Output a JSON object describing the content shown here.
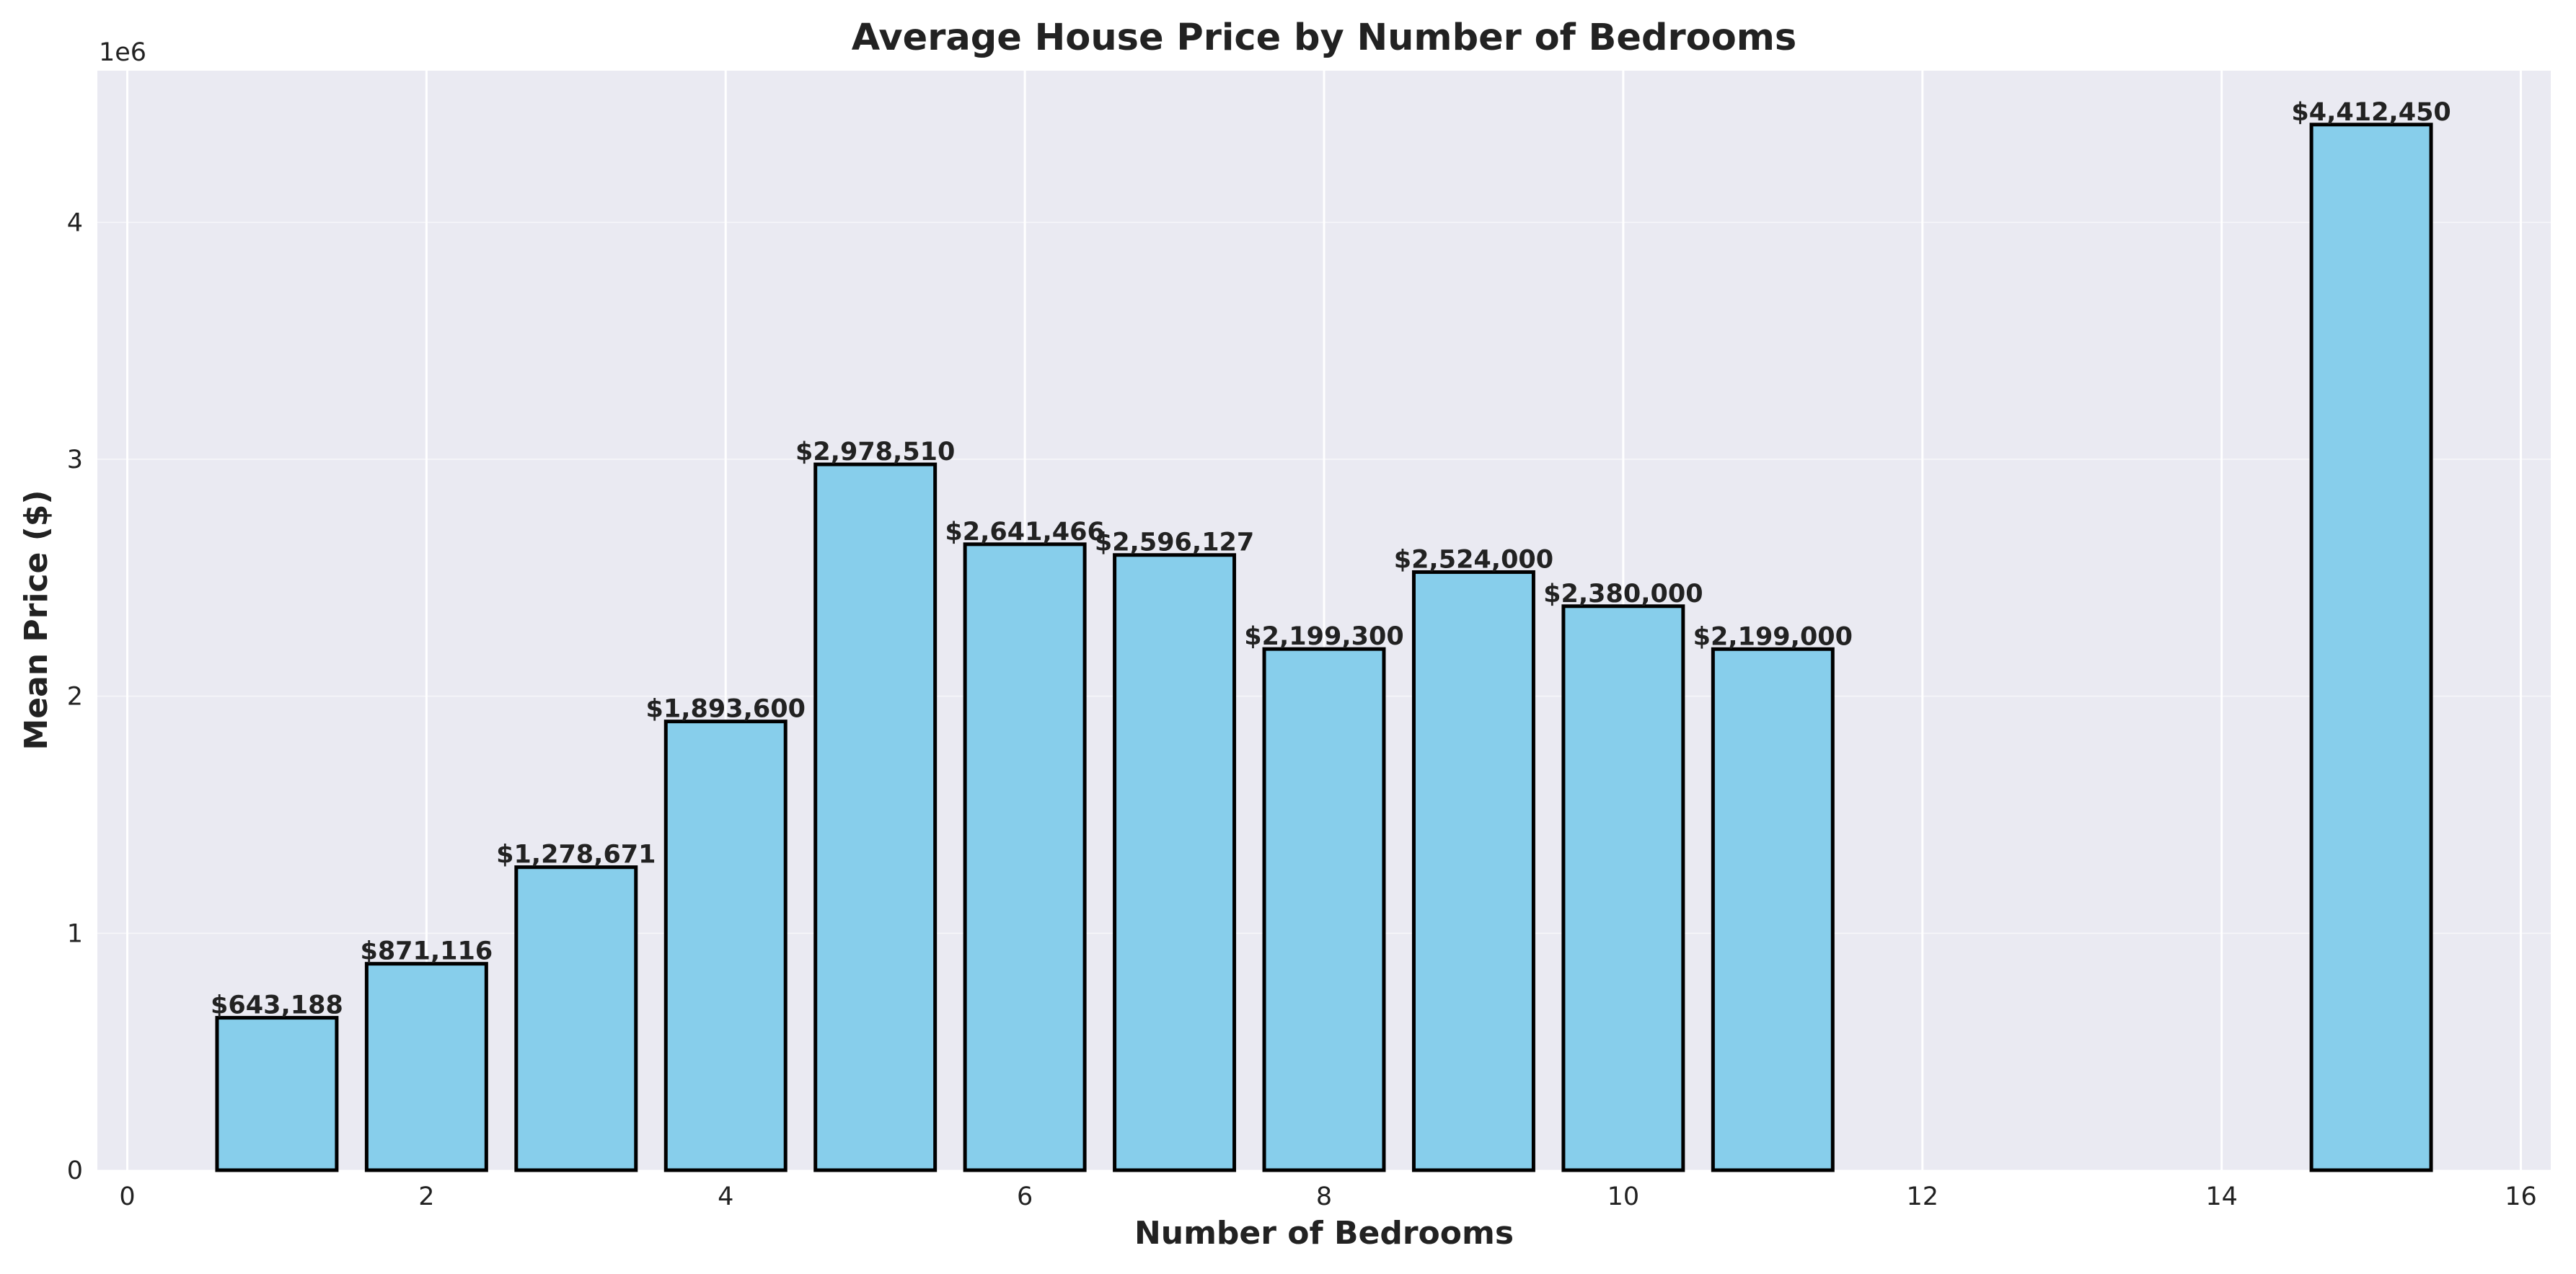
{
  "chart_data": {
    "type": "bar",
    "title": "Average House Price by Number of Bedrooms",
    "xlabel": "Number of Bedrooms",
    "ylabel": "Mean Price ($)",
    "y_offset_label": "1e6",
    "x": [
      1,
      2,
      3,
      4,
      5,
      6,
      7,
      8,
      9,
      10,
      11,
      15
    ],
    "values": [
      643188,
      871116,
      1278671,
      1893600,
      2978510,
      2641466,
      2596127,
      2199300,
      2524000,
      2380000,
      2199000,
      4412450
    ],
    "value_labels": [
      "$643,188",
      "$871,116",
      "$1,278,671",
      "$1,893,600",
      "$2,978,510",
      "$2,641,466",
      "$2,596,127",
      "$2,199,300",
      "$2,524,000",
      "$2,380,000",
      "$2,199,000",
      "$4,412,450"
    ],
    "xlim": [
      -0.2,
      16.2
    ],
    "ylim": [
      0,
      4640000
    ],
    "x_ticks": [
      0,
      2,
      4,
      6,
      8,
      10,
      12,
      14,
      16
    ],
    "y_ticks": [
      0,
      1000000,
      2000000,
      3000000,
      4000000
    ],
    "y_tick_labels": [
      "0",
      "1",
      "2",
      "3",
      "4"
    ],
    "bar_width": 0.8,
    "grid": true,
    "colors": {
      "bar_fill": "#87CEEB",
      "bar_edge": "#000000",
      "plot_background": "#EAEAF2",
      "grid": "#FFFFFF",
      "text": "#222222"
    }
  }
}
